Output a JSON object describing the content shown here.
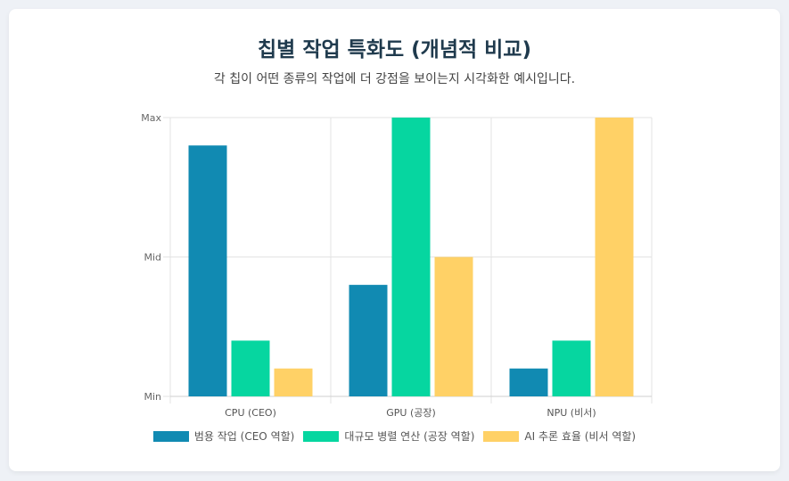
{
  "header": {
    "title": "칩별 작업 특화도 (개념적 비교)",
    "subtitle": "각 칩이 어떤 종류의 작업에 더 강점을 보이는지 시각화한 예시입니다."
  },
  "chart_data": {
    "type": "bar",
    "categories": [
      "CPU (CEO)",
      "GPU (공장)",
      "NPU (비서)"
    ],
    "series": [
      {
        "name": "범용 작업 (CEO 역할)",
        "color": "#118ab2",
        "values": [
          9,
          4,
          1
        ]
      },
      {
        "name": "대규모 병렬 연산 (공장 역할)",
        "color": "#06d6a0",
        "values": [
          2,
          10,
          2
        ]
      },
      {
        "name": "AI 추론 효율 (비서 역할)",
        "color": "#ffd166",
        "values": [
          1,
          5,
          10
        ]
      }
    ],
    "ylim": [
      0,
      10
    ],
    "yticks": [
      {
        "value": 0,
        "label": "Min"
      },
      {
        "value": 5,
        "label": "Mid"
      },
      {
        "value": 10,
        "label": "Max"
      }
    ],
    "grid": true,
    "legend": "bottom"
  }
}
